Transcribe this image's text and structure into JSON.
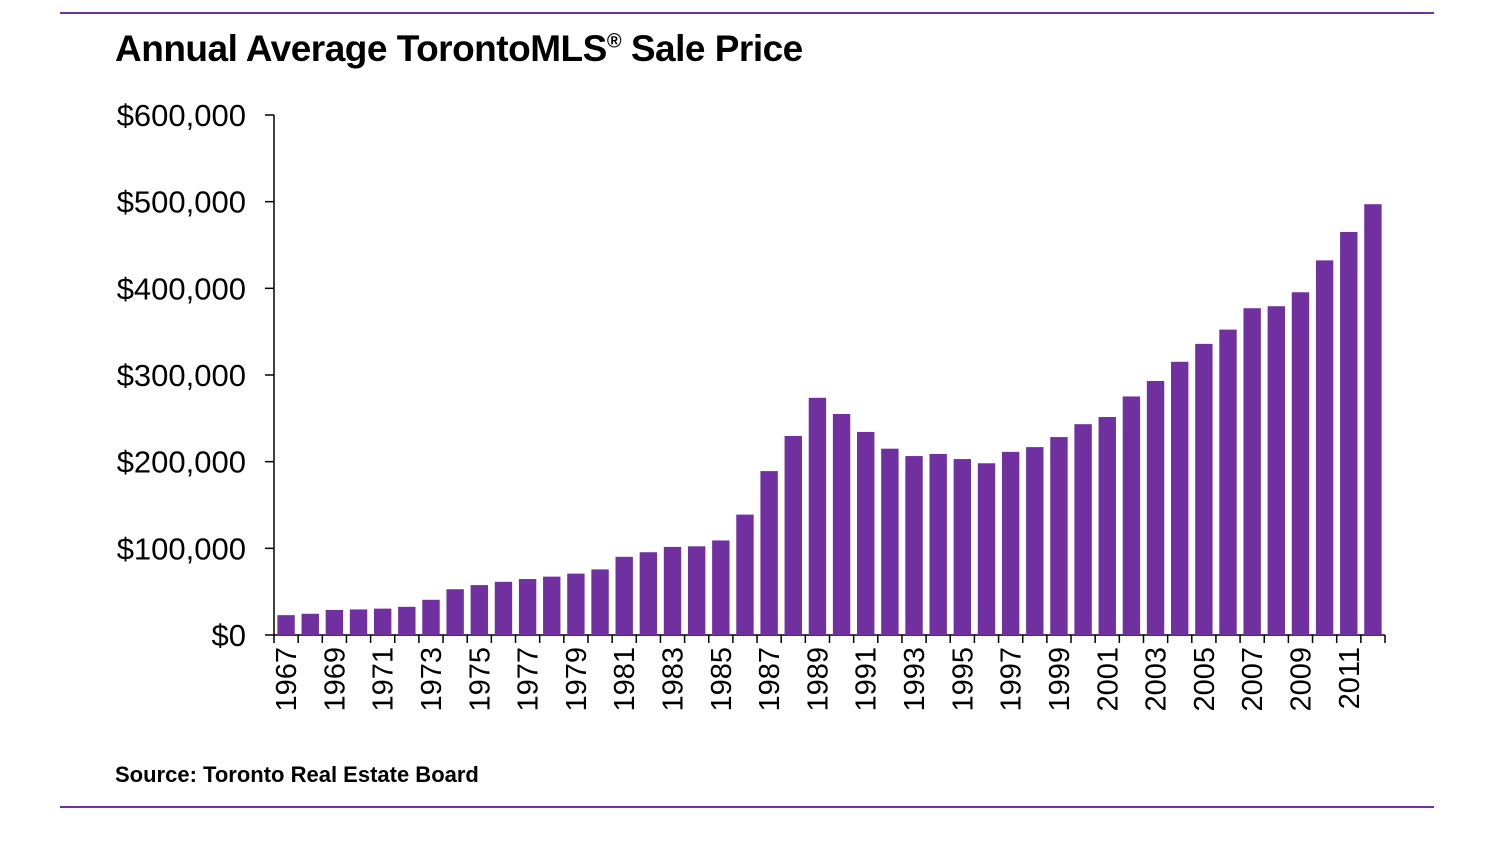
{
  "chart_data": {
    "type": "bar",
    "title": "Annual Average TorontoMLS® Sale Price",
    "source": "Source: Toronto Real Estate Board",
    "xlabel": "",
    "ylabel": "",
    "ylim": [
      0,
      600000
    ],
    "yticks": [
      "$0",
      "$100,000",
      "$200,000",
      "$300,000",
      "$400,000",
      "$500,000",
      "$600,000"
    ],
    "ytick_values": [
      0,
      100000,
      200000,
      300000,
      400000,
      500000,
      600000
    ],
    "grid": false,
    "bar_color": "#7030A0",
    "categories": [
      "1967",
      "1968",
      "1969",
      "1970",
      "1971",
      "1972",
      "1973",
      "1974",
      "1975",
      "1976",
      "1977",
      "1978",
      "1979",
      "1980",
      "1981",
      "1982",
      "1983",
      "1984",
      "1985",
      "1986",
      "1987",
      "1988",
      "1989",
      "1990",
      "1991",
      "1992",
      "1993",
      "1994",
      "1995",
      "1996",
      "1997",
      "1998",
      "1999",
      "2000",
      "2001",
      "2002",
      "2003",
      "2004",
      "2005",
      "2006",
      "2007",
      "2008",
      "2009",
      "2010",
      "2011",
      "2012"
    ],
    "xtick_labels": [
      "1967",
      "1969",
      "1971",
      "1973",
      "1975",
      "1977",
      "1979",
      "1981",
      "1983",
      "1985",
      "1987",
      "1989",
      "1991",
      "1993",
      "1995",
      "1997",
      "1999",
      "2001",
      "2003",
      "2005",
      "2007",
      "2009",
      "2011"
    ],
    "values": [
      22911,
      24494,
      28929,
      29492,
      30426,
      32513,
      40605,
      52806,
      57581,
      61389,
      64559,
      67333,
      70830,
      75694,
      90203,
      95496,
      101626,
      102318,
      109094,
      138925,
      189105,
      229635,
      273698,
      255020,
      234313,
      214971,
      206490,
      208921,
      203028,
      198150,
      211307,
      216815,
      228372,
      243255,
      251508,
      275231,
      293067,
      315231,
      335907,
      352388,
      377029,
      379347,
      395460,
      432264,
      465014,
      497073
    ]
  }
}
